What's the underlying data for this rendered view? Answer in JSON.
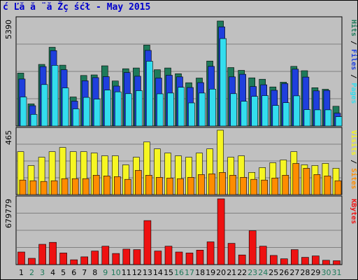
{
  "title": "ć Ľă  ă ¨ă Žç śćł  - May 2015",
  "colors": {
    "hits": "#1e7a5a",
    "files": "#1f3fdd",
    "pages": "#33ddee",
    "visits": "#f6f623",
    "sites": "#ff8c00",
    "kbytes": "#ee1111",
    "weekday_label": "#000000",
    "weekend_label": "#1e7a5a",
    "panel_bg": "#c0c0c0"
  },
  "chart_data": [
    {
      "type": "bar",
      "title": "Hits / Files / Pages",
      "ymax_label": "5390",
      "ylim": [
        0,
        5390
      ],
      "legend": [
        "Hits",
        "Files",
        "Pages"
      ],
      "legend_labels": [
        "Hits",
        "Files",
        "Pages"
      ],
      "categories": [
        "1",
        "2",
        "3",
        "4",
        "5",
        "6",
        "7",
        "8",
        "9",
        "10",
        "11",
        "12",
        "13",
        "14",
        "15",
        "16",
        "17",
        "18",
        "19",
        "20",
        "21",
        "22",
        "23",
        "24",
        "25",
        "26",
        "27",
        "28",
        "29",
        "30",
        "31"
      ],
      "series": [
        {
          "name": "Hits",
          "values": [
            2680,
            1120,
            3120,
            3990,
            3080,
            1470,
            2560,
            2590,
            3050,
            2280,
            2900,
            2940,
            4100,
            2850,
            2940,
            2650,
            2190,
            2430,
            3290,
            5320,
            2960,
            2820,
            2440,
            2370,
            1980,
            2220,
            3020,
            2800,
            1940,
            1860,
            1000
          ]
        },
        {
          "name": "Files",
          "values": [
            2380,
            1030,
            3010,
            3820,
            2850,
            1260,
            2290,
            2450,
            2500,
            2020,
            2710,
            2520,
            3830,
            2430,
            2570,
            2490,
            1950,
            2200,
            3020,
            5020,
            2490,
            2620,
            2000,
            2090,
            1810,
            2150,
            2880,
            2480,
            1780,
            1800,
            650
          ]
        },
        {
          "name": "Pages",
          "values": [
            1470,
            590,
            2100,
            3070,
            1930,
            870,
            1450,
            1360,
            1820,
            1730,
            1640,
            1790,
            3280,
            1630,
            1670,
            1960,
            1170,
            1670,
            1870,
            4430,
            1640,
            1250,
            1500,
            1540,
            1040,
            1180,
            1530,
            830,
            820,
            820,
            470
          ]
        }
      ]
    },
    {
      "type": "bar",
      "title": "Visits / Sites",
      "ymax_label": "465",
      "ylim": [
        0,
        465
      ],
      "legend": [
        "Visits",
        "Sites"
      ],
      "legend_labels": [
        "Visits",
        "Sites"
      ],
      "categories": [
        "1",
        "2",
        "3",
        "4",
        "5",
        "6",
        "7",
        "8",
        "9",
        "10",
        "11",
        "12",
        "13",
        "14",
        "15",
        "16",
        "17",
        "18",
        "19",
        "20",
        "21",
        "22",
        "23",
        "24",
        "25",
        "26",
        "27",
        "28",
        "29",
        "30",
        "31"
      ],
      "series": [
        {
          "name": "Visits",
          "values": [
            310,
            210,
            270,
            310,
            340,
            310,
            310,
            300,
            280,
            280,
            215,
            270,
            380,
            330,
            300,
            280,
            270,
            300,
            330,
            465,
            270,
            280,
            160,
            195,
            230,
            250,
            310,
            215,
            210,
            225,
            190
          ]
        },
        {
          "name": "Sites",
          "values": [
            105,
            100,
            95,
            100,
            115,
            115,
            115,
            140,
            135,
            130,
            110,
            175,
            140,
            125,
            120,
            115,
            125,
            145,
            150,
            160,
            140,
            125,
            110,
            105,
            120,
            140,
            225,
            190,
            145,
            135,
            100
          ]
        }
      ]
    },
    {
      "type": "bar",
      "title": "KBytes",
      "ymax_label": "679779",
      "ylim": [
        0,
        679779
      ],
      "legend": [
        "KBytes"
      ],
      "legend_labels": [
        "KBytes"
      ],
      "categories": [
        "1",
        "2",
        "3",
        "4",
        "5",
        "6",
        "7",
        "8",
        "9",
        "10",
        "11",
        "12",
        "13",
        "14",
        "15",
        "16",
        "17",
        "18",
        "19",
        "20",
        "21",
        "22",
        "23",
        "24",
        "25",
        "26",
        "27",
        "28",
        "29",
        "30",
        "31"
      ],
      "series": [
        {
          "name": "KBytes",
          "values": [
            130000,
            65000,
            210000,
            230000,
            120000,
            50000,
            80000,
            140000,
            190000,
            115000,
            160000,
            155000,
            455000,
            140000,
            190000,
            130000,
            120000,
            150000,
            235000,
            679779,
            220000,
            100000,
            350000,
            190000,
            95000,
            60000,
            155000,
            75000,
            90000,
            45000,
            40000
          ]
        }
      ]
    }
  ],
  "day_labels": [
    "1",
    "2",
    "3",
    "4",
    "5",
    "6",
    "7",
    "8",
    "9",
    "10",
    "11",
    "12",
    "13",
    "14",
    "15",
    "16",
    "17",
    "18",
    "19",
    "20",
    "21",
    "22",
    "23",
    "24",
    "25",
    "26",
    "27",
    "28",
    "29",
    "30",
    "31"
  ],
  "weekend_days": [
    2,
    3,
    9,
    10,
    16,
    17,
    23,
    24,
    30,
    31
  ]
}
